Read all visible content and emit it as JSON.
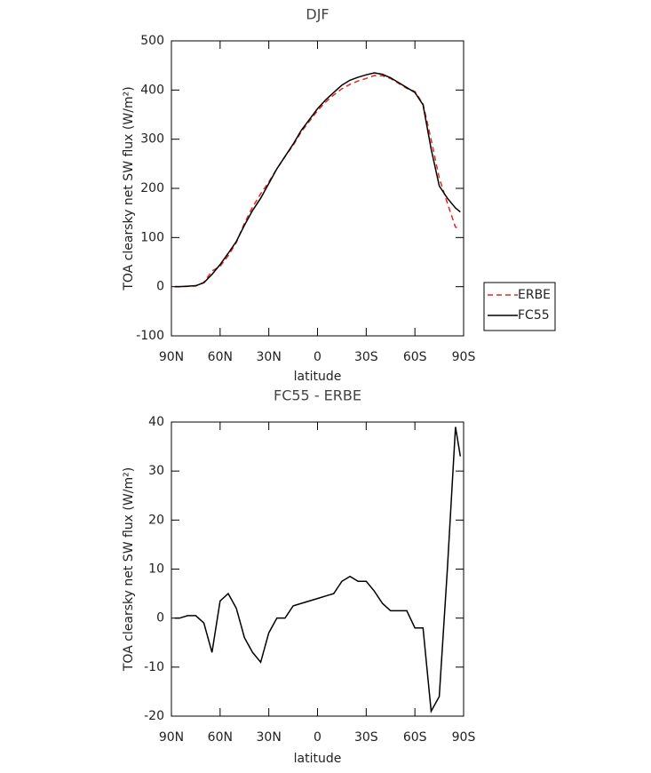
{
  "chart_data": [
    {
      "type": "line",
      "title": "DJF",
      "xlabel": "latitude",
      "ylabel": "TOA clearsky net SW flux (W/m²)",
      "x": [
        88,
        85,
        80,
        75,
        70,
        65,
        60,
        55,
        50,
        45,
        40,
        35,
        30,
        25,
        20,
        15,
        10,
        5,
        0,
        -5,
        -10,
        -15,
        -20,
        -25,
        -30,
        -35,
        -40,
        -45,
        -50,
        -55,
        -60,
        -65,
        -70,
        -75,
        -80,
        -85,
        -88
      ],
      "series": [
        {
          "name": "ERBE",
          "color": "#e8251f",
          "style": "dashed",
          "values": [
            0,
            0,
            0.5,
            1.5,
            9,
            32,
            41.5,
            63,
            90,
            129,
            162,
            189,
            213,
            240,
            265,
            287.5,
            315,
            336.5,
            358,
            375.5,
            390,
            402.5,
            411.5,
            418.5,
            423.5,
            429.5,
            429,
            423.5,
            413.5,
            403.5,
            397,
            372,
            299,
            221,
            170,
            121,
            119
          ]
        },
        {
          "name": "FC55",
          "color": "#000000",
          "style": "solid",
          "values": [
            0,
            0,
            1,
            2,
            8,
            25,
            45,
            68,
            92,
            125,
            155,
            180,
            210,
            240,
            265,
            290,
            318,
            340,
            362,
            380,
            395,
            410,
            420,
            426,
            431,
            435,
            432,
            425,
            415,
            405,
            395,
            370,
            280,
            205,
            180,
            160,
            152
          ]
        }
      ],
      "xlim": [
        90,
        -90
      ],
      "xticks": [
        {
          "value": 90,
          "label": "90N"
        },
        {
          "value": 60,
          "label": "60N"
        },
        {
          "value": 30,
          "label": "30N"
        },
        0,
        {
          "value": -30,
          "label": "30S"
        },
        {
          "value": -60,
          "label": "60S"
        },
        {
          "value": -90,
          "label": "90S"
        }
      ],
      "ylim": [
        -100,
        500
      ],
      "yticks": [
        -100,
        0,
        100,
        200,
        300,
        400,
        500
      ],
      "legend": "right"
    },
    {
      "type": "line",
      "title": "FC55 - ERBE",
      "xlabel": "latitude",
      "ylabel": "TOA clearsky net SW flux (W/m²)",
      "x": [
        88,
        85,
        80,
        75,
        70,
        65,
        60,
        55,
        50,
        45,
        40,
        35,
        30,
        25,
        20,
        15,
        10,
        5,
        0,
        -5,
        -10,
        -15,
        -20,
        -25,
        -30,
        -35,
        -40,
        -45,
        -50,
        -55,
        -60,
        -65,
        -70,
        -75,
        -80,
        -85,
        -88
      ],
      "values": [
        0,
        0,
        0.5,
        0.5,
        -1,
        -7,
        3.5,
        5,
        2,
        -4,
        -7,
        -9,
        -3,
        0,
        0,
        2.5,
        3,
        3.5,
        4,
        4.5,
        5,
        7.5,
        8.5,
        7.5,
        7.5,
        5.5,
        3,
        1.5,
        1.5,
        1.5,
        -2,
        -2,
        -19,
        -16,
        10,
        39,
        33
      ],
      "color": "#000000",
      "xlim": [
        90,
        -90
      ],
      "xticks": [
        {
          "value": 90,
          "label": "90N"
        },
        {
          "value": 60,
          "label": "60N"
        },
        {
          "value": 30,
          "label": "30N"
        },
        0,
        {
          "value": -30,
          "label": "30S"
        },
        {
          "value": -60,
          "label": "60S"
        },
        {
          "value": -90,
          "label": "90S"
        }
      ],
      "ylim": [
        -20,
        40
      ],
      "yticks": [
        -20,
        -10,
        0,
        10,
        20,
        30,
        40
      ]
    }
  ]
}
